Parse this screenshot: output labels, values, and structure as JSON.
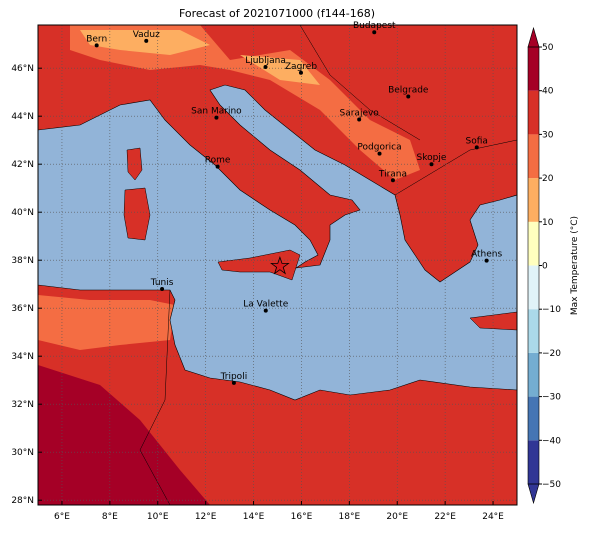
{
  "map": {
    "title": "Forecast of 2021071000 (f144-168)",
    "xlim": [
      5,
      25
    ],
    "ylim": [
      27.8,
      47.8
    ],
    "xticks": [
      {
        "value": 6,
        "label": "6°E"
      },
      {
        "value": 8,
        "label": "8°E"
      },
      {
        "value": 10,
        "label": "10°E"
      },
      {
        "value": 12,
        "label": "12°E"
      },
      {
        "value": 14,
        "label": "14°E"
      },
      {
        "value": 16,
        "label": "16°E"
      },
      {
        "value": 18,
        "label": "18°E"
      },
      {
        "value": 20,
        "label": "20°E"
      },
      {
        "value": 22,
        "label": "22°E"
      },
      {
        "value": 24,
        "label": "24°E"
      }
    ],
    "yticks": [
      {
        "value": 28,
        "label": "28°N"
      },
      {
        "value": 30,
        "label": "30°N"
      },
      {
        "value": 32,
        "label": "32°N"
      },
      {
        "value": 34,
        "label": "34°N"
      },
      {
        "value": 36,
        "label": "36°N"
      },
      {
        "value": 38,
        "label": "38°N"
      },
      {
        "value": 40,
        "label": "40°N"
      },
      {
        "value": 42,
        "label": "42°N"
      },
      {
        "value": 44,
        "label": "44°N"
      },
      {
        "value": 46,
        "label": "46°N"
      }
    ],
    "grid": true,
    "cities": [
      {
        "name": "Bern",
        "lon": 7.45,
        "lat": 46.95
      },
      {
        "name": "Vaduz",
        "lon": 9.52,
        "lat": 47.14
      },
      {
        "name": "Budapest",
        "lon": 19.04,
        "lat": 47.5
      },
      {
        "name": "Ljubljana",
        "lon": 14.5,
        "lat": 46.05
      },
      {
        "name": "Zagreb",
        "lon": 15.98,
        "lat": 45.81
      },
      {
        "name": "Belgrade",
        "lon": 20.46,
        "lat": 44.82
      },
      {
        "name": "San Marino",
        "lon": 12.45,
        "lat": 43.94
      },
      {
        "name": "Sarajevo",
        "lon": 18.41,
        "lat": 43.86
      },
      {
        "name": "Podgorica",
        "lon": 19.26,
        "lat": 42.44
      },
      {
        "name": "Sofia",
        "lon": 23.32,
        "lat": 42.7
      },
      {
        "name": "Skopje",
        "lon": 21.43,
        "lat": 42.0
      },
      {
        "name": "Rome",
        "lon": 12.5,
        "lat": 41.9
      },
      {
        "name": "Tirana",
        "lon": 19.82,
        "lat": 41.33
      },
      {
        "name": "Athens",
        "lon": 23.73,
        "lat": 37.98
      },
      {
        "name": "Tunis",
        "lon": 10.18,
        "lat": 36.8
      },
      {
        "name": "La Valette",
        "lon": 14.51,
        "lat": 35.9
      },
      {
        "name": "Tripoli",
        "lon": 13.18,
        "lat": 32.89
      }
    ],
    "star": {
      "lon": 15.1,
      "lat": 37.75,
      "color": "#d7191c"
    },
    "colorbar": {
      "label": "Max Temperature (°C)",
      "lim": [
        -50,
        50
      ],
      "levels": [
        -50,
        -40,
        -30,
        -20,
        -10,
        0,
        10,
        20,
        30,
        40,
        50
      ],
      "colors": [
        "#313695",
        "#4575b4",
        "#74add1",
        "#abd9e9",
        "#e0f3f8",
        "#ffffbf",
        "#fdae61",
        "#f46d43",
        "#d73027",
        "#a50026"
      ],
      "ticks": [
        {
          "value": -50,
          "label": "−50"
        },
        {
          "value": -40,
          "label": "−40"
        },
        {
          "value": -30,
          "label": "−30"
        },
        {
          "value": -20,
          "label": "−20"
        },
        {
          "value": -10,
          "label": "−10"
        },
        0,
        10,
        20,
        30,
        40,
        50
      ]
    }
  }
}
